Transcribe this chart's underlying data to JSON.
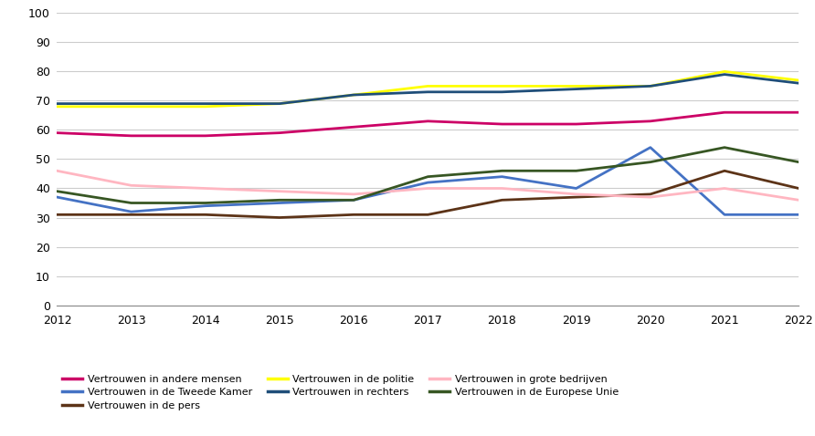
{
  "years": [
    2012,
    2013,
    2014,
    2015,
    2016,
    2017,
    2018,
    2019,
    2020,
    2021,
    2022
  ],
  "series_order": [
    "Vertrouwen in andere mensen",
    "Vertrouwen in de Tweede Kamer",
    "Vertrouwen in de pers",
    "Vertrouwen in de politie",
    "Vertrouwen in rechters",
    "Vertrouwen in grote bedrijven",
    "Vertrouwen in de Europese Unie"
  ],
  "series": {
    "Vertrouwen in andere mensen": {
      "values": [
        59,
        58,
        58,
        59,
        61,
        63,
        62,
        62,
        63,
        66,
        66
      ],
      "color": "#CC0066",
      "linewidth": 2.0
    },
    "Vertrouwen in de Tweede Kamer": {
      "values": [
        37,
        32,
        34,
        35,
        36,
        42,
        44,
        40,
        54,
        31,
        31
      ],
      "color": "#4472C4",
      "linewidth": 2.0
    },
    "Vertrouwen in de pers": {
      "values": [
        31,
        31,
        31,
        30,
        31,
        31,
        36,
        37,
        38,
        46,
        40
      ],
      "color": "#5C3317",
      "linewidth": 2.0
    },
    "Vertrouwen in de politie": {
      "values": [
        68,
        68,
        68,
        69,
        72,
        75,
        75,
        75,
        75,
        80,
        77
      ],
      "color": "#FFFF00",
      "linewidth": 2.0
    },
    "Vertrouwen in rechters": {
      "values": [
        69,
        69,
        69,
        69,
        72,
        73,
        73,
        74,
        75,
        79,
        76
      ],
      "color": "#1F4E79",
      "linewidth": 2.0
    },
    "Vertrouwen in grote bedrijven": {
      "values": [
        46,
        41,
        40,
        39,
        38,
        40,
        40,
        38,
        37,
        40,
        36
      ],
      "color": "#FFB6C1",
      "linewidth": 2.0
    },
    "Vertrouwen in de Europese Unie": {
      "values": [
        39,
        35,
        35,
        36,
        36,
        44,
        46,
        46,
        49,
        54,
        49
      ],
      "color": "#375623",
      "linewidth": 2.0
    }
  },
  "legend_order": [
    "Vertrouwen in andere mensen",
    "Vertrouwen in de Tweede Kamer",
    "Vertrouwen in de pers",
    "Vertrouwen in de politie",
    "Vertrouwen in rechters",
    "Vertrouwen in grote bedrijven",
    "Vertrouwen in de Europese Unie"
  ],
  "ylim": [
    0,
    100
  ],
  "yticks": [
    0,
    10,
    20,
    30,
    40,
    50,
    60,
    70,
    80,
    90,
    100
  ],
  "background_color": "#FFFFFF",
  "grid_color": "#CCCCCC"
}
